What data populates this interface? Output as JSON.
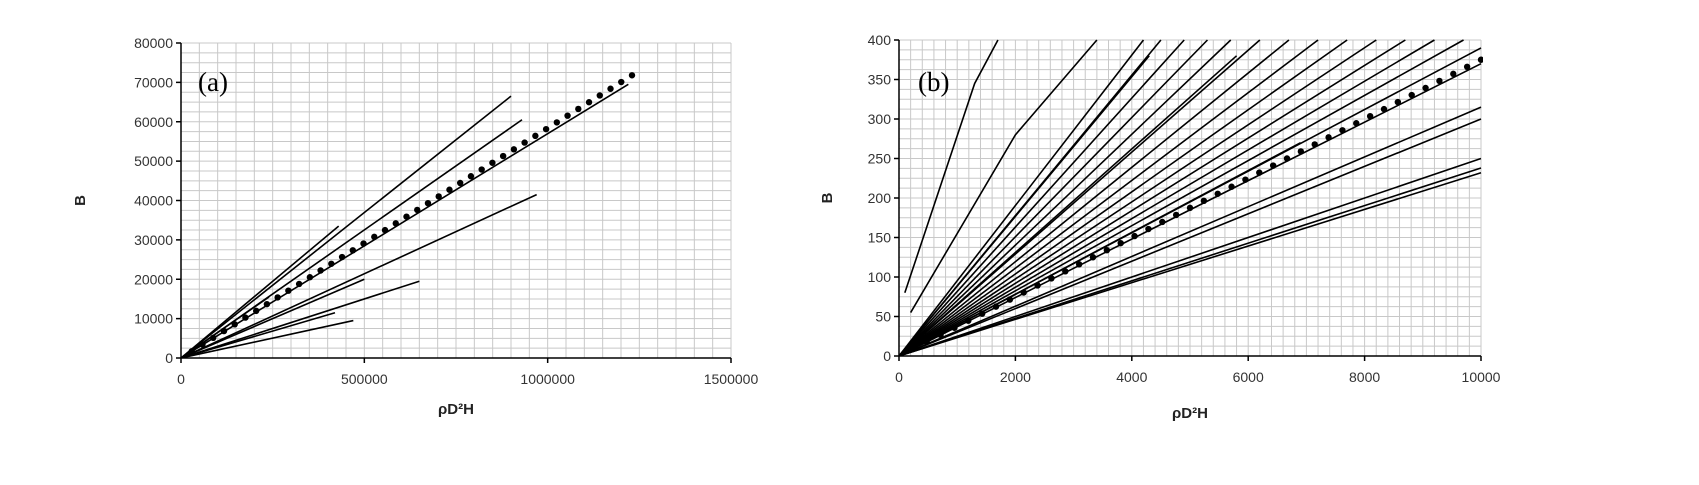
{
  "chart_data": [
    {
      "type": "line",
      "panel_label": "(a)",
      "xlabel": "ρD²H",
      "ylabel": "B",
      "xlim": [
        0,
        1500000
      ],
      "ylim": [
        0,
        80000
      ],
      "x_ticks": [
        "0",
        "500000",
        "1000000",
        "1500000"
      ],
      "y_ticks": [
        "0",
        "10000",
        "20000",
        "30000",
        "40000",
        "50000",
        "60000",
        "70000",
        "80000"
      ],
      "grid": true,
      "series": [
        {
          "style": "solid",
          "x": [
            0,
            430000
          ],
          "y": [
            0,
            33500
          ]
        },
        {
          "style": "solid",
          "x": [
            0,
            900000
          ],
          "y": [
            0,
            66500
          ]
        },
        {
          "style": "solid",
          "x": [
            0,
            930000
          ],
          "y": [
            0,
            60500
          ]
        },
        {
          "style": "solid",
          "x": [
            0,
            1220000
          ],
          "y": [
            0,
            69500
          ]
        },
        {
          "style": "solid",
          "x": [
            0,
            970000
          ],
          "y": [
            0,
            41500
          ]
        },
        {
          "style": "solid",
          "x": [
            0,
            240000
          ],
          "y": [
            0,
            15500
          ]
        },
        {
          "style": "solid",
          "x": [
            0,
            500000
          ],
          "y": [
            0,
            20000
          ]
        },
        {
          "style": "solid",
          "x": [
            0,
            650000
          ],
          "y": [
            0,
            19500
          ]
        },
        {
          "style": "solid",
          "x": [
            0,
            420000
          ],
          "y": [
            0,
            11500
          ]
        },
        {
          "style": "solid",
          "x": [
            0,
            470000
          ],
          "y": [
            0,
            9500
          ]
        },
        {
          "style": "dotted",
          "x": [
            0,
            1230000
          ],
          "y": [
            0,
            71800
          ]
        }
      ]
    },
    {
      "type": "line",
      "panel_label": "(b)",
      "xlabel": "ρD²H",
      "ylabel": "B",
      "xlim": [
        0,
        10000
      ],
      "ylim": [
        0,
        400
      ],
      "x_ticks": [
        "0",
        "2000",
        "4000",
        "6000",
        "8000",
        "10000"
      ],
      "y_ticks": [
        "0",
        "50",
        "100",
        "150",
        "200",
        "250",
        "300",
        "350",
        "400"
      ],
      "grid": true,
      "series": [
        {
          "style": "solid",
          "x": [
            100,
            1300,
            1700
          ],
          "y": [
            80,
            345,
            400
          ]
        },
        {
          "style": "solid",
          "x": [
            200,
            2000,
            3400
          ],
          "y": [
            55,
            280,
            400
          ]
        },
        {
          "style": "solid",
          "x": [
            0,
            4200
          ],
          "y": [
            0,
            400
          ]
        },
        {
          "style": "solid",
          "x": [
            0,
            4500
          ],
          "y": [
            0,
            400
          ]
        },
        {
          "style": "solid",
          "x": [
            0,
            4900
          ],
          "y": [
            0,
            400
          ]
        },
        {
          "style": "solid",
          "x": [
            0,
            5300
          ],
          "y": [
            0,
            400
          ]
        },
        {
          "style": "solid",
          "x": [
            0,
            5700
          ],
          "y": [
            0,
            400
          ]
        },
        {
          "style": "solid",
          "x": [
            0,
            6200
          ],
          "y": [
            0,
            400
          ]
        },
        {
          "style": "solid",
          "x": [
            0,
            6700
          ],
          "y": [
            0,
            400
          ]
        },
        {
          "style": "solid",
          "x": [
            0,
            7200
          ],
          "y": [
            0,
            400
          ]
        },
        {
          "style": "solid",
          "x": [
            0,
            7700
          ],
          "y": [
            0,
            400
          ]
        },
        {
          "style": "solid",
          "x": [
            0,
            8200
          ],
          "y": [
            0,
            400
          ]
        },
        {
          "style": "solid",
          "x": [
            0,
            8700
          ],
          "y": [
            0,
            400
          ]
        },
        {
          "style": "solid",
          "x": [
            0,
            9200
          ],
          "y": [
            0,
            400
          ]
        },
        {
          "style": "solid",
          "x": [
            0,
            9700
          ],
          "y": [
            0,
            400
          ]
        },
        {
          "style": "solid",
          "x": [
            0,
            10000
          ],
          "y": [
            0,
            390
          ]
        },
        {
          "style": "solid",
          "x": [
            0,
            10000
          ],
          "y": [
            0,
            370
          ]
        },
        {
          "style": "solid",
          "x": [
            0,
            6900
          ],
          "y": [
            0,
            270
          ]
        },
        {
          "style": "solid",
          "x": [
            0,
            10000
          ],
          "y": [
            0,
            315
          ]
        },
        {
          "style": "solid",
          "x": [
            0,
            10000
          ],
          "y": [
            0,
            300
          ]
        },
        {
          "style": "solid",
          "x": [
            0,
            10000
          ],
          "y": [
            0,
            250
          ]
        },
        {
          "style": "solid",
          "x": [
            0,
            10000
          ],
          "y": [
            0,
            238
          ]
        },
        {
          "style": "solid",
          "x": [
            0,
            10000
          ],
          "y": [
            0,
            232
          ]
        },
        {
          "style": "solid",
          "x": [
            0,
            4300
          ],
          "y": [
            0,
            380
          ]
        },
        {
          "style": "solid",
          "x": [
            0,
            5800
          ],
          "y": [
            0,
            380
          ]
        },
        {
          "style": "dotted",
          "x": [
            0,
            10000
          ],
          "y": [
            0,
            375
          ]
        }
      ]
    }
  ]
}
